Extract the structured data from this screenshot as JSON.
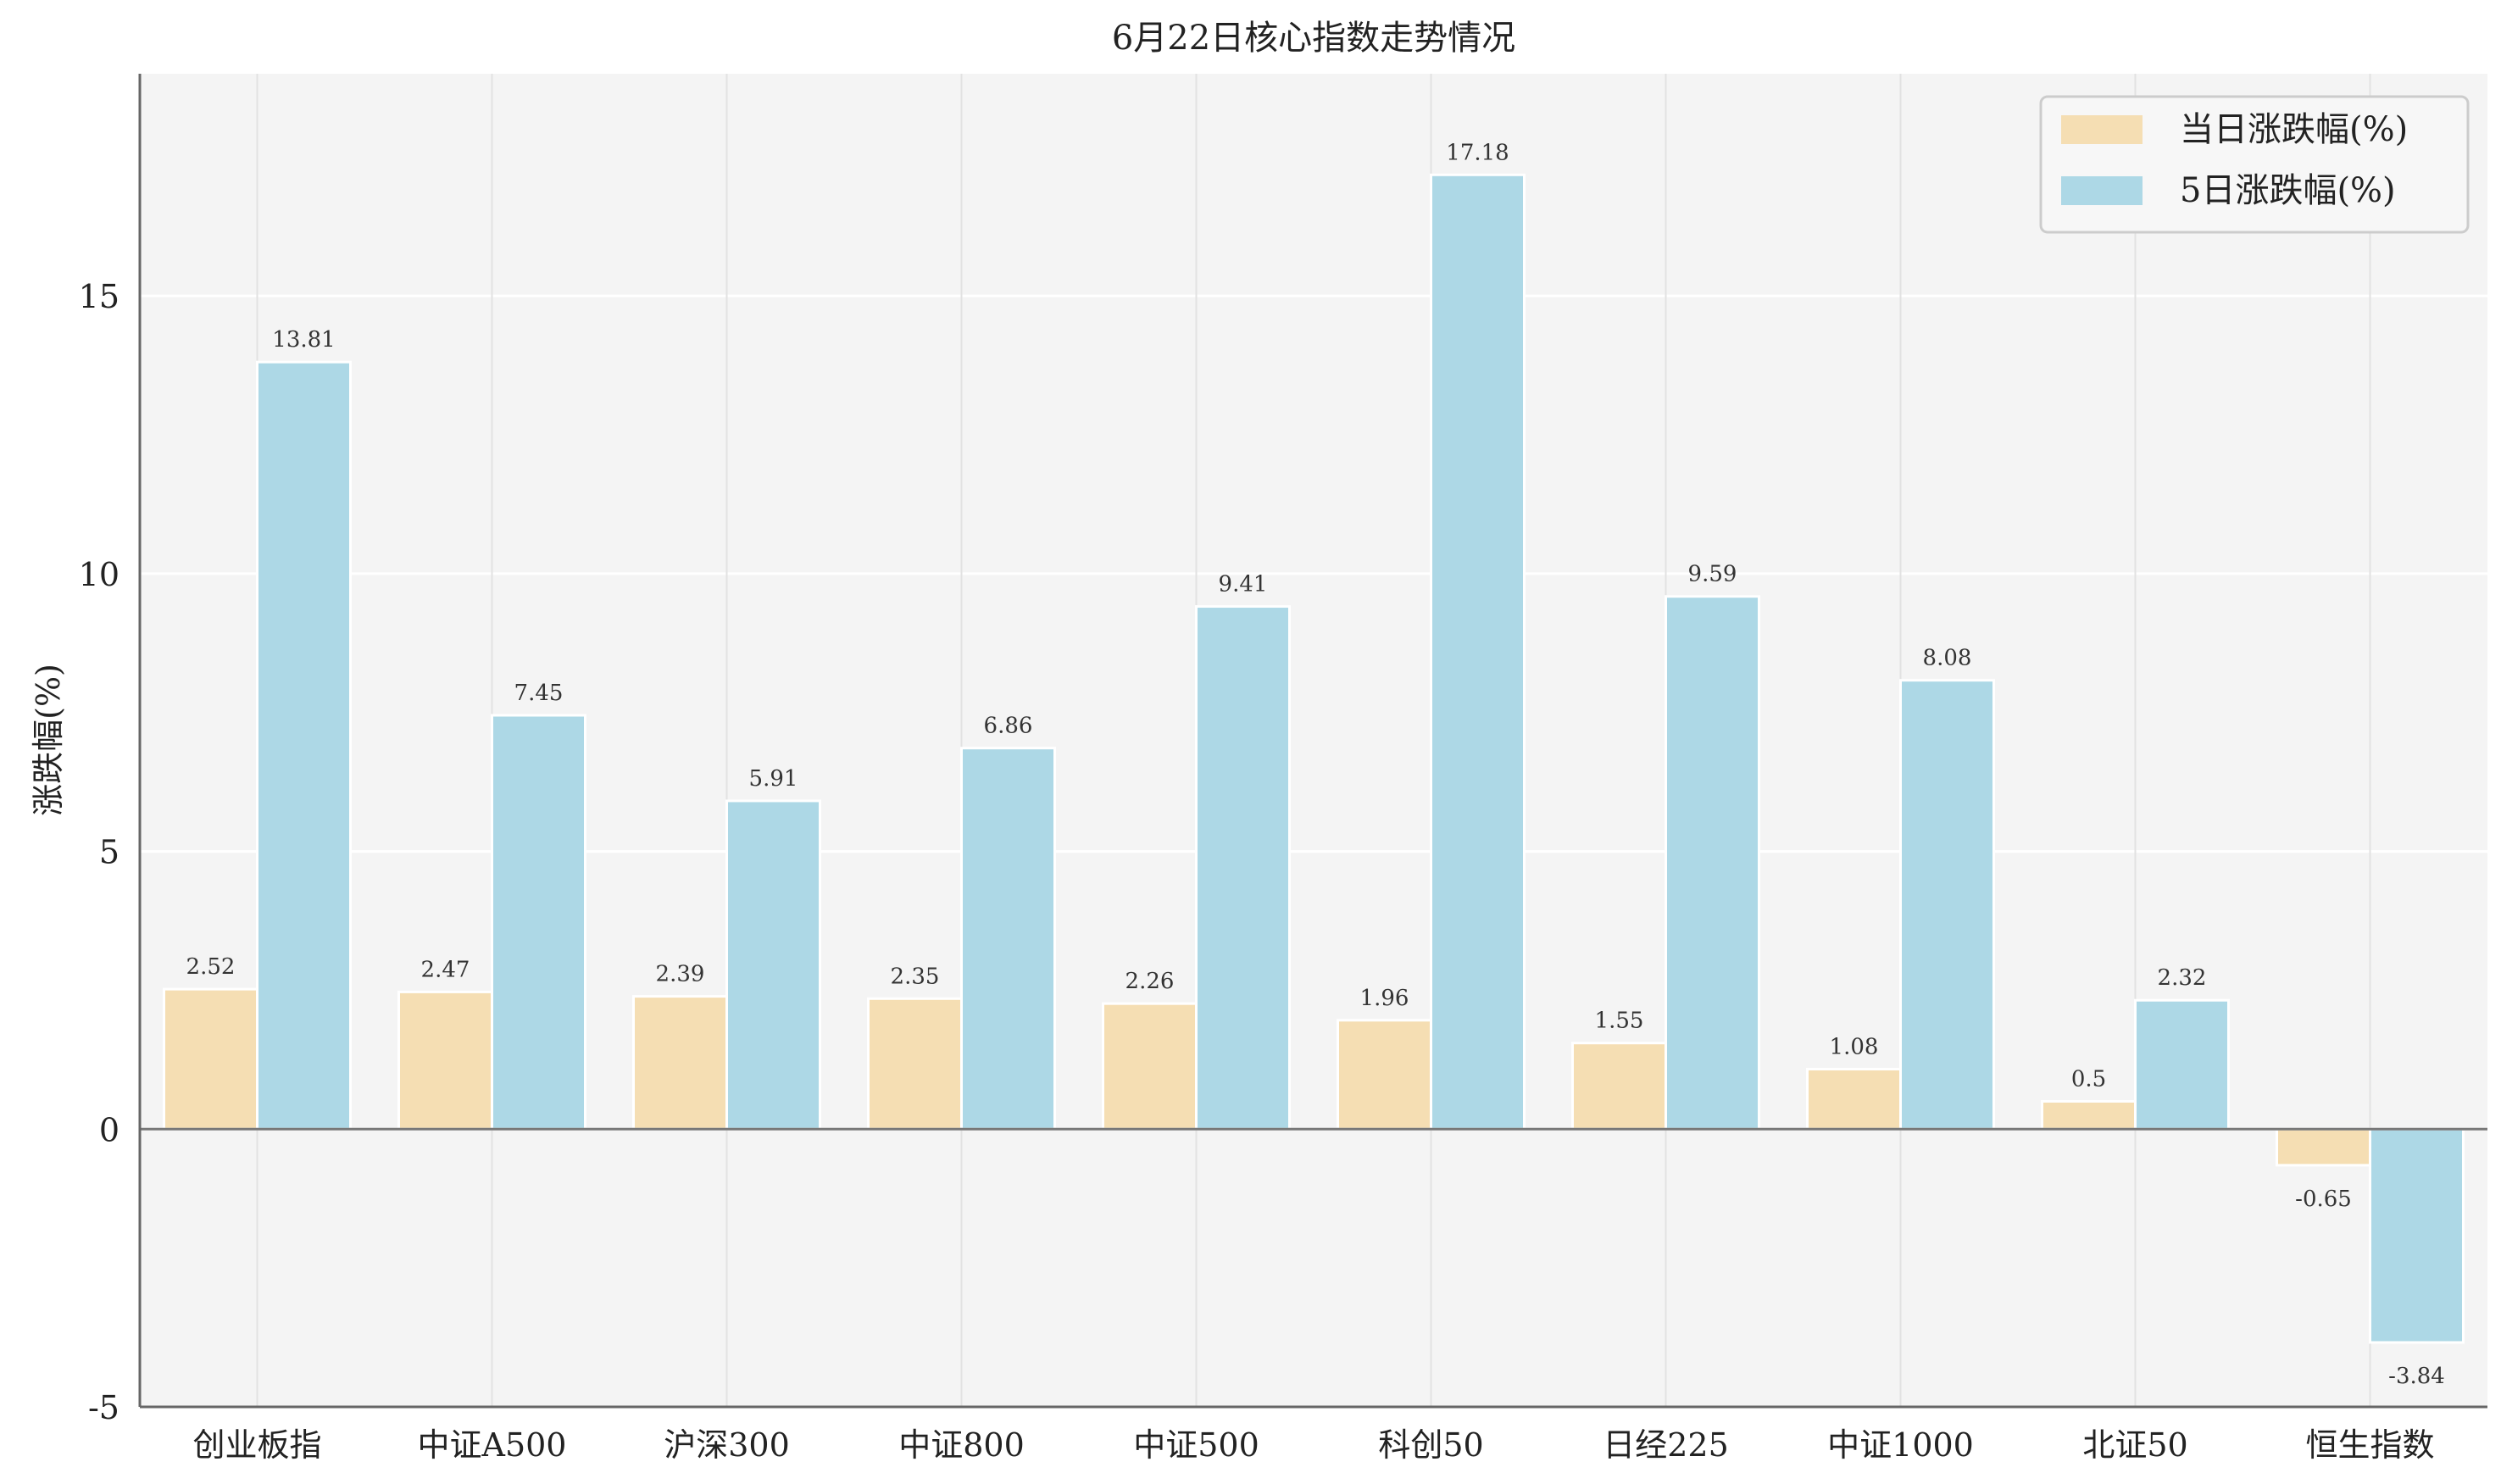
{
  "chart_data": {
    "type": "bar",
    "title": "6月22日核心指数走势情况",
    "xlabel": "",
    "ylabel": "涨跌幅(%)",
    "categories": [
      "创业板指",
      "中证A500",
      "沪深300",
      "中证800",
      "中证500",
      "科创50",
      "日经225",
      "中证1000",
      "北证50",
      "恒生指数"
    ],
    "series": [
      {
        "name": "当日涨跌幅(%)",
        "color": "#f5deb3",
        "values": [
          2.52,
          2.47,
          2.39,
          2.35,
          2.26,
          1.96,
          1.55,
          1.08,
          0.5,
          -0.65
        ]
      },
      {
        "name": "5日涨跌幅(%)",
        "color": "#add8e6",
        "values": [
          13.81,
          7.45,
          5.91,
          6.86,
          9.41,
          17.18,
          9.59,
          8.08,
          2.32,
          -3.84
        ]
      }
    ],
    "ylim": [
      -5,
      19
    ],
    "yticks": [
      -5,
      0,
      5,
      10,
      15
    ],
    "grid": true,
    "legend_position": "top-right"
  }
}
